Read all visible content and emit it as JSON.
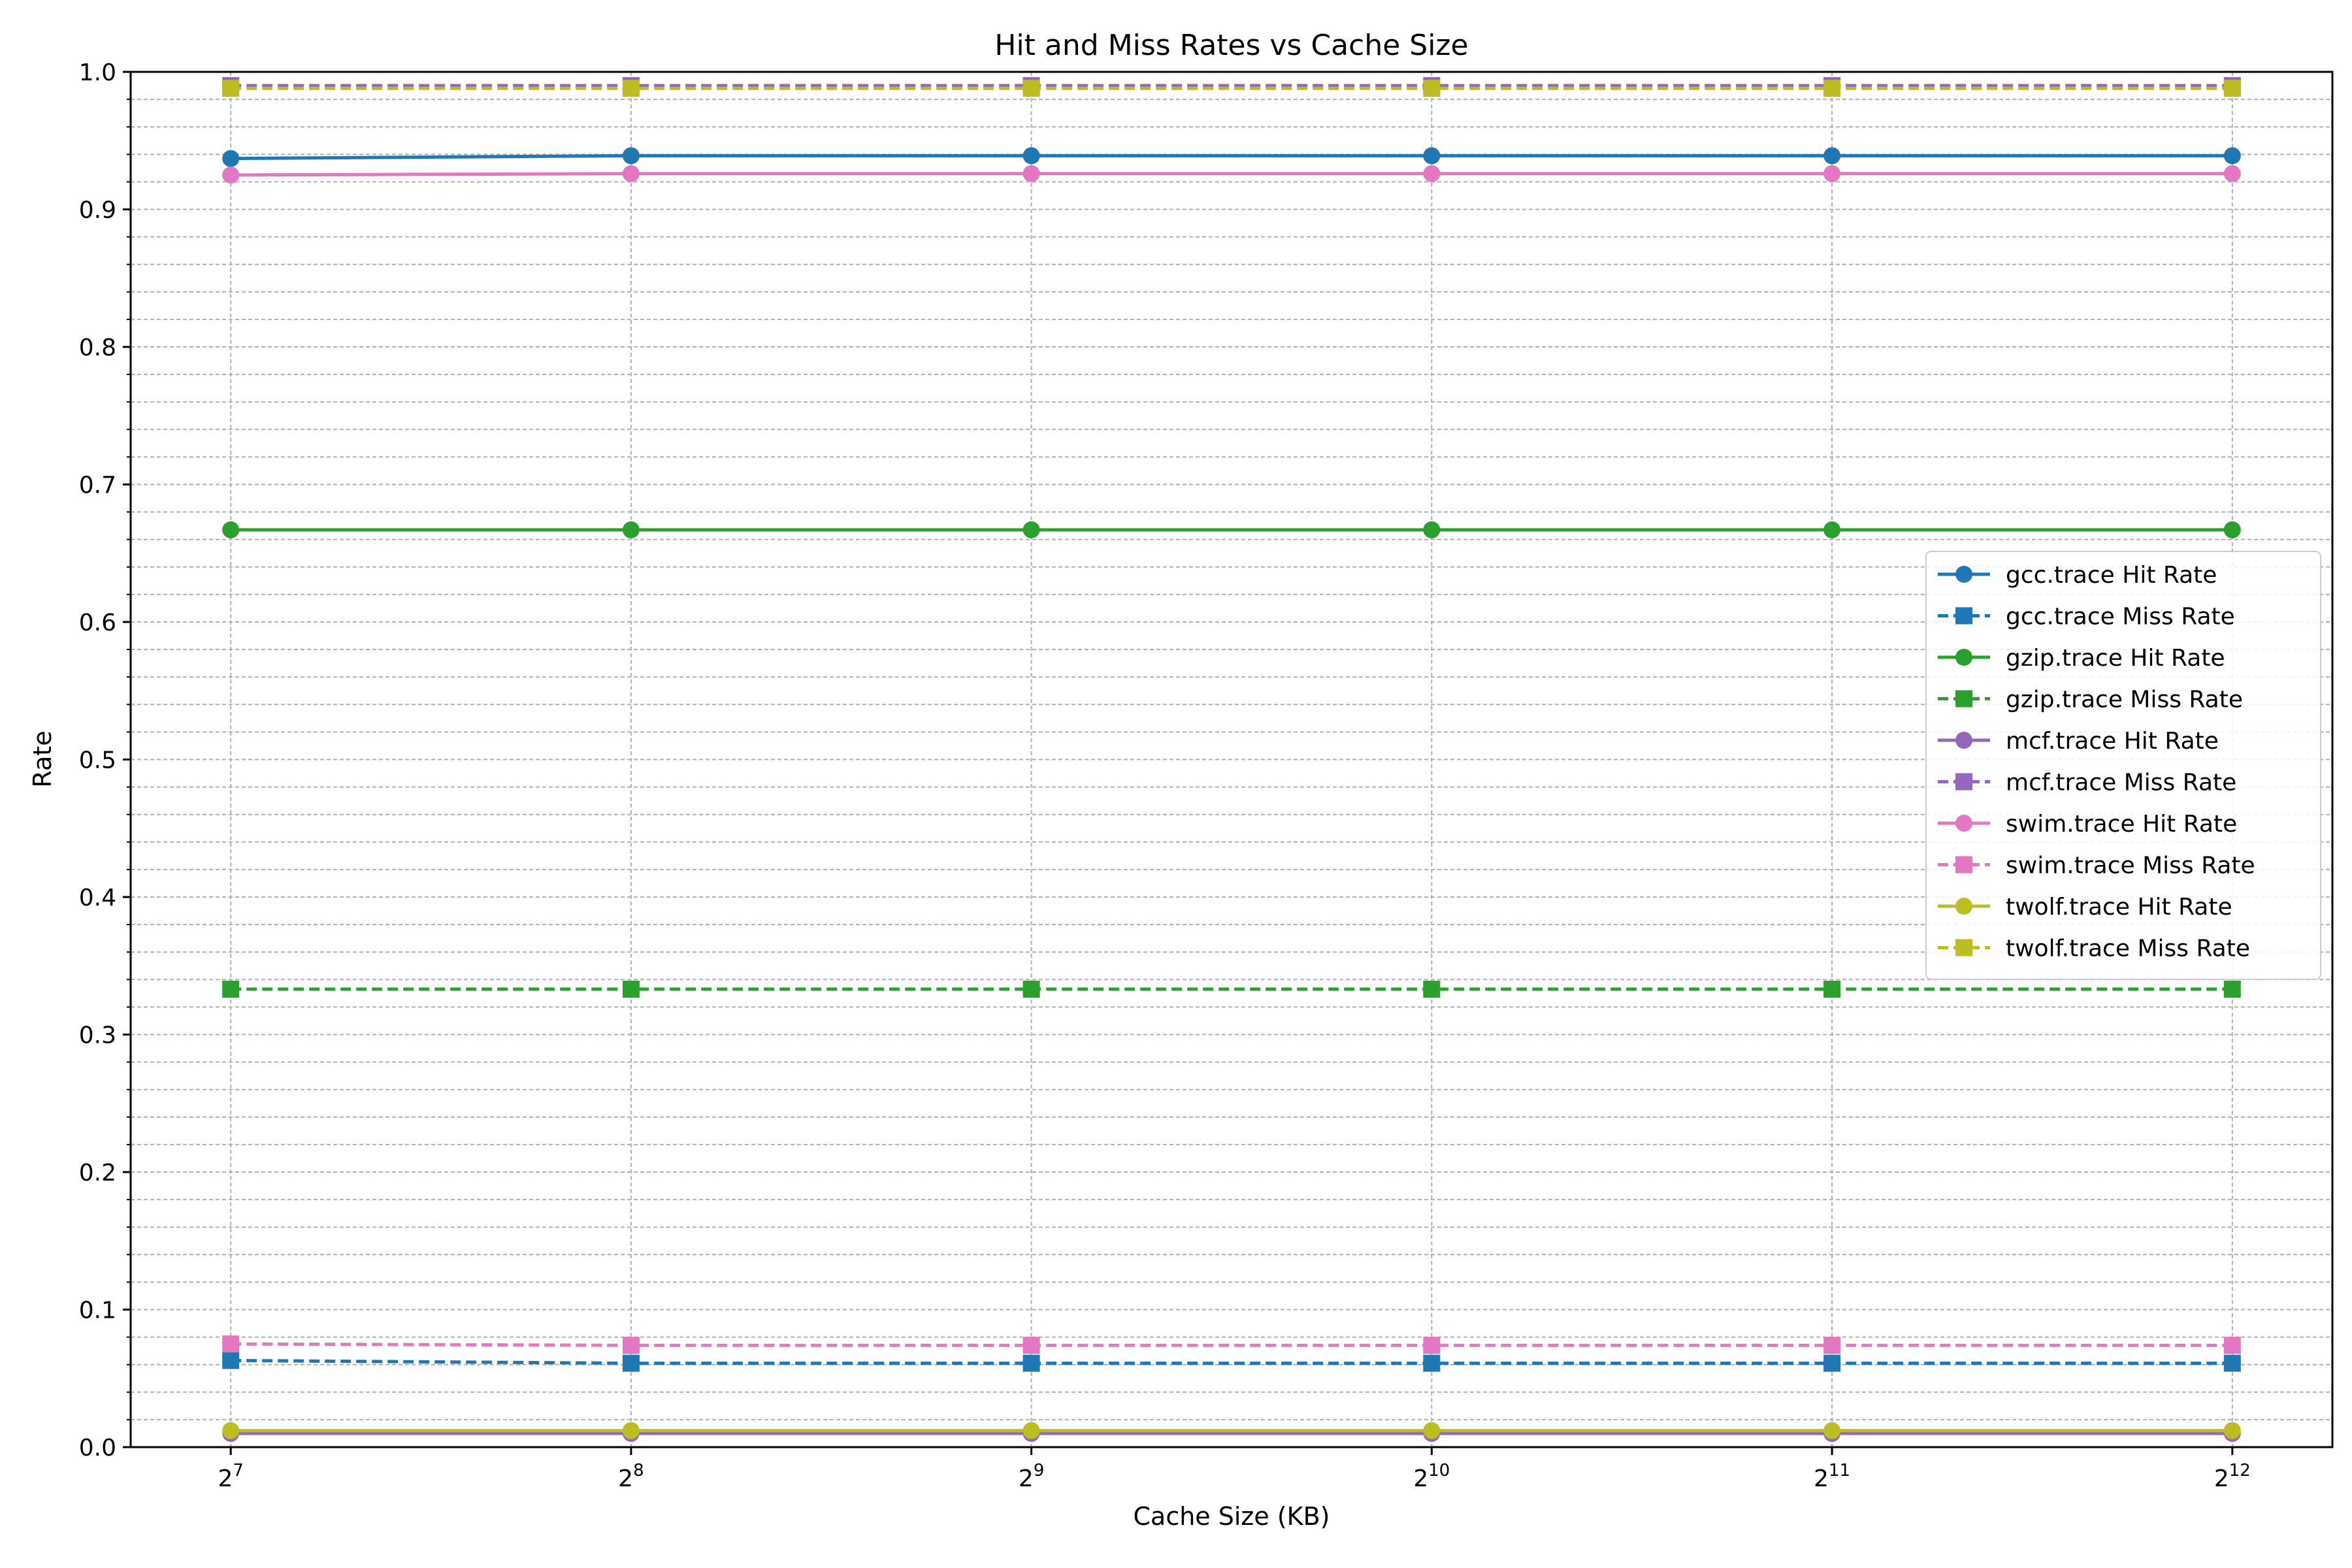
{
  "chart_data": {
    "type": "line",
    "title": "Hit and Miss Rates vs Cache Size",
    "xlabel": "Cache Size (KB)",
    "ylabel": "Rate",
    "x_scale": "log2",
    "x": [
      128,
      256,
      512,
      1024,
      2048,
      4096
    ],
    "x_tick_labels": [
      {
        "base": "2",
        "exp": "7"
      },
      {
        "base": "2",
        "exp": "8"
      },
      {
        "base": "2",
        "exp": "9"
      },
      {
        "base": "2",
        "exp": "10"
      },
      {
        "base": "2",
        "exp": "11"
      },
      {
        "base": "2",
        "exp": "12"
      }
    ],
    "ylim": [
      0,
      1
    ],
    "y_ticks": [
      "0.0",
      "0.1",
      "0.2",
      "0.3",
      "0.4",
      "0.5",
      "0.6",
      "0.7",
      "0.8",
      "0.9",
      "1.0"
    ],
    "grid": true,
    "legend_position": "right",
    "series": [
      {
        "name": "gcc.trace Hit Rate",
        "color": "#1f77b4",
        "style": "solid",
        "marker": "circle",
        "values": [
          0.937,
          0.939,
          0.939,
          0.939,
          0.939,
          0.939
        ]
      },
      {
        "name": "gcc.trace Miss Rate",
        "color": "#1f77b4",
        "style": "dashed",
        "marker": "square",
        "values": [
          0.063,
          0.061,
          0.061,
          0.061,
          0.061,
          0.061
        ]
      },
      {
        "name": "gzip.trace Hit Rate",
        "color": "#2ca02c",
        "style": "solid",
        "marker": "circle",
        "values": [
          0.667,
          0.667,
          0.667,
          0.667,
          0.667,
          0.667
        ]
      },
      {
        "name": "gzip.trace Miss Rate",
        "color": "#2ca02c",
        "style": "dashed",
        "marker": "square",
        "values": [
          0.333,
          0.333,
          0.333,
          0.333,
          0.333,
          0.333
        ]
      },
      {
        "name": "mcf.trace Hit Rate",
        "color": "#9467bd",
        "style": "solid",
        "marker": "circle",
        "values": [
          0.01,
          0.01,
          0.01,
          0.01,
          0.01,
          0.01
        ]
      },
      {
        "name": "mcf.trace Miss Rate",
        "color": "#9467bd",
        "style": "dashed",
        "marker": "square",
        "values": [
          0.99,
          0.99,
          0.99,
          0.99,
          0.99,
          0.99
        ]
      },
      {
        "name": "swim.trace Hit Rate",
        "color": "#e377c2",
        "style": "solid",
        "marker": "circle",
        "values": [
          0.925,
          0.926,
          0.926,
          0.926,
          0.926,
          0.926
        ]
      },
      {
        "name": "swim.trace Miss Rate",
        "color": "#e377c2",
        "style": "dashed",
        "marker": "square",
        "values": [
          0.075,
          0.074,
          0.074,
          0.074,
          0.074,
          0.074
        ]
      },
      {
        "name": "twolf.trace Hit Rate",
        "color": "#bcbd22",
        "style": "solid",
        "marker": "circle",
        "values": [
          0.012,
          0.012,
          0.012,
          0.012,
          0.012,
          0.012
        ]
      },
      {
        "name": "twolf.trace Miss Rate",
        "color": "#bcbd22",
        "style": "dashed",
        "marker": "square",
        "values": [
          0.988,
          0.988,
          0.988,
          0.988,
          0.988,
          0.988
        ]
      }
    ]
  }
}
